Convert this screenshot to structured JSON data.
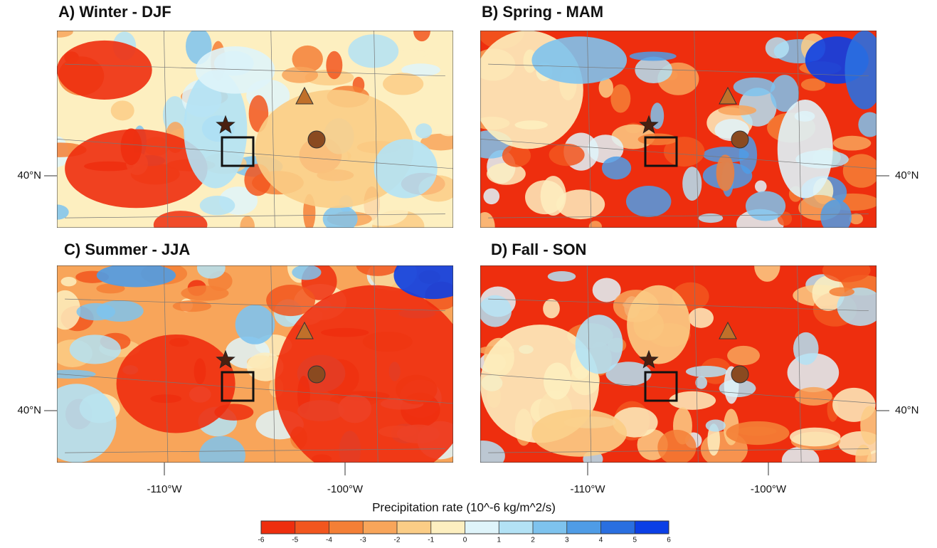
{
  "panels": [
    {
      "title": "A) Winter - DJF"
    },
    {
      "title": "B) Spring - MAM"
    },
    {
      "title": "C) Summer - JJA"
    },
    {
      "title": "D) Fall - SON"
    }
  ],
  "axis_labels": {
    "lat": "40°N",
    "lon": [
      "-110°W",
      "-100°W"
    ]
  },
  "colorbar": {
    "label": "Precipitation rate (10^-6 kg/m^2/s)",
    "ticks": [
      -6,
      -5,
      -4,
      -3,
      -2,
      -1,
      0,
      1,
      2,
      3,
      4,
      5,
      6
    ],
    "colors": [
      "#ee2e0e",
      "#f2561e",
      "#f47f36",
      "#f8a55a",
      "#fbcd86",
      "#fdefc0",
      "#dff4fa",
      "#b3e2f5",
      "#7ec3ee",
      "#4f9ce6",
      "#2a6fe0",
      "#0b3fe6"
    ]
  }
}
